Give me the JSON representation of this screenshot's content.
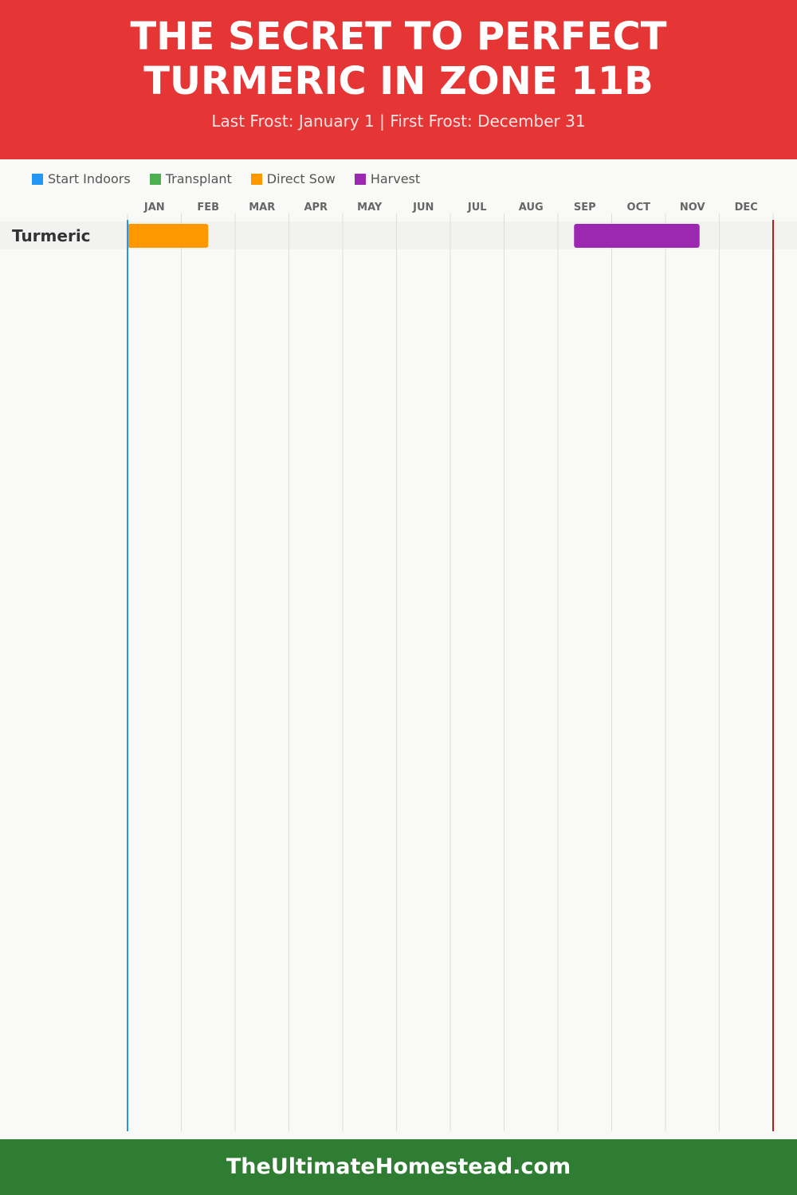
{
  "header": {
    "title": "The Secret to Perfect Turmeric in Zone 11B",
    "subtitle": "Last Frost: January 1 | First Frost: December 31"
  },
  "legend": [
    {
      "label": "Start Indoors",
      "color": "#2196f3"
    },
    {
      "label": "Transplant",
      "color": "#4caf50"
    },
    {
      "label": "Direct Sow",
      "color": "#ff9800"
    },
    {
      "label": "Harvest",
      "color": "#9c27b0"
    }
  ],
  "chart_data": {
    "type": "gantt",
    "months": [
      "JAN",
      "FEB",
      "MAR",
      "APR",
      "MAY",
      "JUN",
      "JUL",
      "AUG",
      "SEP",
      "OCT",
      "NOV",
      "DEC"
    ],
    "rows": [
      {
        "crop": "Turmeric",
        "bars": [
          {
            "activity": "Direct Sow",
            "start": "01-01",
            "end": "02-15",
            "color": "#ff9800"
          },
          {
            "activity": "Harvest",
            "start": "09-10",
            "end": "11-20",
            "color": "#9c27b0"
          }
        ]
      }
    ],
    "last_frost": "01-01",
    "first_frost": "12-31",
    "last_frost_color": "#2196f3",
    "first_frost_color": "#b71c1c"
  },
  "footer": {
    "site": "TheUltimateHomestead.com"
  }
}
